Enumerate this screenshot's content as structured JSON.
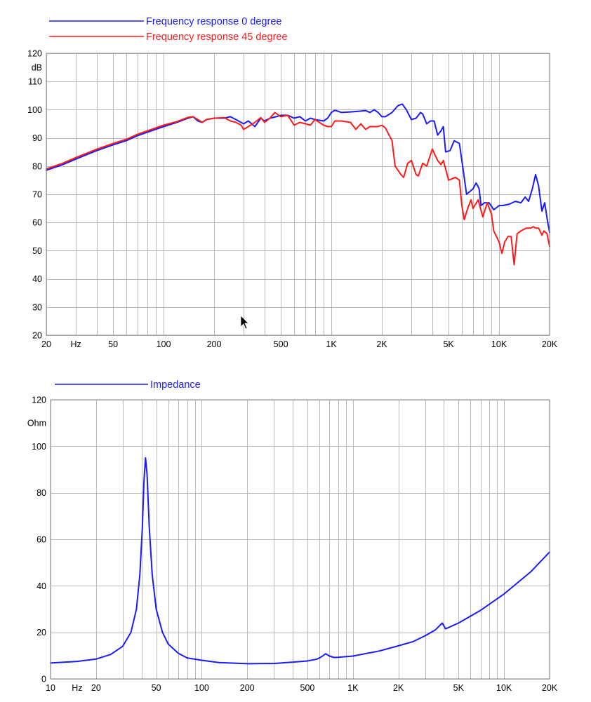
{
  "colors": {
    "blue": "#1a1aff",
    "red": "#ff1a1a",
    "grid": "#b9b9b9",
    "frame": "#8a8a8a"
  },
  "chart_data": [
    {
      "type": "line",
      "xscale": "log",
      "xlim": [
        20,
        20000
      ],
      "ylim": [
        20,
        120
      ],
      "grid": true,
      "legend_position": "top-left",
      "xtick_labels": [
        {
          "v": 20,
          "t": "20"
        },
        {
          "v": 30,
          "t": "Hz"
        },
        {
          "v": 50,
          "t": "50"
        },
        {
          "v": 100,
          "t": "100"
        },
        {
          "v": 200,
          "t": "200"
        },
        {
          "v": 500,
          "t": "500"
        },
        {
          "v": 1000,
          "t": "1K"
        },
        {
          "v": 2000,
          "t": "2K"
        },
        {
          "v": 5000,
          "t": "5K"
        },
        {
          "v": 10000,
          "t": "10K"
        },
        {
          "v": 20000,
          "t": "20K"
        }
      ],
      "ytick_labels": [
        {
          "v": 120,
          "t": "120"
        },
        {
          "v": 115,
          "t": "dB"
        },
        {
          "v": 110,
          "t": "110"
        },
        {
          "v": 100,
          "t": "100"
        },
        {
          "v": 90,
          "t": "90"
        },
        {
          "v": 80,
          "t": "80"
        },
        {
          "v": 70,
          "t": "70"
        },
        {
          "v": 60,
          "t": "60"
        },
        {
          "v": 50,
          "t": "50"
        },
        {
          "v": 40,
          "t": "40"
        },
        {
          "v": 30,
          "t": "30"
        },
        {
          "v": 20,
          "t": "20"
        }
      ],
      "series": [
        {
          "name": "Frequency response 0 degree",
          "color": "#1a1aff",
          "points": [
            [
              20,
              78.5
            ],
            [
              25,
              80.5
            ],
            [
              30,
              82.5
            ],
            [
              40,
              85.5
            ],
            [
              50,
              87.5
            ],
            [
              60,
              89
            ],
            [
              70,
              90.8
            ],
            [
              80,
              92
            ],
            [
              100,
              94
            ],
            [
              120,
              95.5
            ],
            [
              140,
              97
            ],
            [
              150,
              97.5
            ],
            [
              160,
              96
            ],
            [
              170,
              95.5
            ],
            [
              180,
              96.5
            ],
            [
              200,
              97
            ],
            [
              230,
              97
            ],
            [
              250,
              97.5
            ],
            [
              270,
              96.5
            ],
            [
              300,
              95
            ],
            [
              320,
              96
            ],
            [
              350,
              94
            ],
            [
              380,
              97
            ],
            [
              400,
              96
            ],
            [
              430,
              97
            ],
            [
              470,
              97.5
            ],
            [
              500,
              98
            ],
            [
              550,
              98
            ],
            [
              600,
              97
            ],
            [
              650,
              97.5
            ],
            [
              700,
              96
            ],
            [
              750,
              97
            ],
            [
              800,
              96.5
            ],
            [
              900,
              96
            ],
            [
              950,
              97
            ],
            [
              1000,
              99
            ],
            [
              1050,
              99.8
            ],
            [
              1150,
              99
            ],
            [
              1300,
              99.2
            ],
            [
              1500,
              99.5
            ],
            [
              1600,
              99.7
            ],
            [
              1700,
              99
            ],
            [
              1800,
              100
            ],
            [
              1900,
              99
            ],
            [
              2000,
              97.5
            ],
            [
              2100,
              97.5
            ],
            [
              2300,
              99
            ],
            [
              2500,
              101.5
            ],
            [
              2650,
              102
            ],
            [
              2800,
              100
            ],
            [
              3000,
              96.5
            ],
            [
              3200,
              97
            ],
            [
              3400,
              99
            ],
            [
              3500,
              98.5
            ],
            [
              3700,
              95
            ],
            [
              3900,
              96
            ],
            [
              4100,
              96
            ],
            [
              4300,
              91
            ],
            [
              4500,
              92.5
            ],
            [
              4650,
              94
            ],
            [
              4800,
              85
            ],
            [
              5100,
              85.5
            ],
            [
              5400,
              89
            ],
            [
              5800,
              88
            ],
            [
              6100,
              79
            ],
            [
              6400,
              70
            ],
            [
              6700,
              71
            ],
            [
              7000,
              72
            ],
            [
              7300,
              74
            ],
            [
              7600,
              72
            ],
            [
              7800,
              66
            ],
            [
              8200,
              67
            ],
            [
              8700,
              67
            ],
            [
              9300,
              64.5
            ],
            [
              10000,
              66
            ],
            [
              10500,
              66
            ],
            [
              11500,
              66.5
            ],
            [
              12500,
              67.5
            ],
            [
              13500,
              67
            ],
            [
              14300,
              69
            ],
            [
              15000,
              67.5
            ],
            [
              15800,
              72
            ],
            [
              16500,
              77
            ],
            [
              17200,
              73
            ],
            [
              18000,
              64
            ],
            [
              18700,
              67
            ],
            [
              19500,
              60
            ],
            [
              20000,
              56.5
            ]
          ]
        },
        {
          "name": "Frequency response 45 degree",
          "color": "#ff1a1a",
          "points": [
            [
              20,
              79
            ],
            [
              25,
              81
            ],
            [
              30,
              83
            ],
            [
              40,
              86
            ],
            [
              50,
              88
            ],
            [
              60,
              89.5
            ],
            [
              70,
              91.3
            ],
            [
              80,
              92.5
            ],
            [
              100,
              94.5
            ],
            [
              120,
              95.8
            ],
            [
              140,
              97.3
            ],
            [
              150,
              97.5
            ],
            [
              160,
              96.5
            ],
            [
              170,
              95.5
            ],
            [
              180,
              96.5
            ],
            [
              200,
              97
            ],
            [
              230,
              97.2
            ],
            [
              250,
              96
            ],
            [
              270,
              95.5
            ],
            [
              290,
              94.5
            ],
            [
              300,
              93
            ],
            [
              330,
              94.5
            ],
            [
              350,
              95.5
            ],
            [
              380,
              97.2
            ],
            [
              400,
              95.5
            ],
            [
              430,
              97
            ],
            [
              460,
              99
            ],
            [
              500,
              97.5
            ],
            [
              550,
              98
            ],
            [
              600,
              94.5
            ],
            [
              650,
              95.5
            ],
            [
              700,
              95
            ],
            [
              750,
              94.5
            ],
            [
              800,
              96.5
            ],
            [
              900,
              94.5
            ],
            [
              950,
              94
            ],
            [
              1000,
              94
            ],
            [
              1050,
              96
            ],
            [
              1150,
              96
            ],
            [
              1300,
              95.5
            ],
            [
              1400,
              93
            ],
            [
              1500,
              95
            ],
            [
              1600,
              93
            ],
            [
              1700,
              94
            ],
            [
              1800,
              94
            ],
            [
              1900,
              94
            ],
            [
              2000,
              94.5
            ],
            [
              2100,
              93.5
            ],
            [
              2300,
              89
            ],
            [
              2400,
              80
            ],
            [
              2600,
              77
            ],
            [
              2700,
              76
            ],
            [
              2850,
              81
            ],
            [
              3000,
              82
            ],
            [
              3200,
              77
            ],
            [
              3300,
              76.5
            ],
            [
              3500,
              81
            ],
            [
              3700,
              80
            ],
            [
              4000,
              86
            ],
            [
              4300,
              82
            ],
            [
              4500,
              80.5
            ],
            [
              4650,
              82
            ],
            [
              5000,
              75
            ],
            [
              5500,
              76
            ],
            [
              5800,
              75
            ],
            [
              6000,
              66
            ],
            [
              6200,
              61
            ],
            [
              6500,
              65
            ],
            [
              6800,
              68
            ],
            [
              7000,
              65
            ],
            [
              7500,
              68
            ],
            [
              8000,
              62
            ],
            [
              8500,
              67
            ],
            [
              9000,
              63
            ],
            [
              9300,
              57
            ],
            [
              10000,
              53
            ],
            [
              10400,
              49
            ],
            [
              10800,
              53
            ],
            [
              11300,
              55
            ],
            [
              11800,
              55
            ],
            [
              12300,
              45
            ],
            [
              12800,
              56
            ],
            [
              13500,
              57
            ],
            [
              14500,
              58
            ],
            [
              15500,
              58
            ],
            [
              16000,
              58.5
            ],
            [
              16500,
              58
            ],
            [
              17200,
              58
            ],
            [
              18000,
              55.5
            ],
            [
              18500,
              57
            ],
            [
              19300,
              56
            ],
            [
              20000,
              51.5
            ]
          ]
        }
      ]
    },
    {
      "type": "line",
      "xscale": "log",
      "xlim": [
        10,
        20000
      ],
      "ylim": [
        0,
        120
      ],
      "grid": true,
      "legend_position": "top-left",
      "xtick_labels": [
        {
          "v": 10,
          "t": "10"
        },
        {
          "v": 15,
          "t": "Hz"
        },
        {
          "v": 20,
          "t": "20"
        },
        {
          "v": 50,
          "t": "50"
        },
        {
          "v": 100,
          "t": "100"
        },
        {
          "v": 200,
          "t": "200"
        },
        {
          "v": 500,
          "t": "500"
        },
        {
          "v": 1000,
          "t": "1K"
        },
        {
          "v": 2000,
          "t": "2K"
        },
        {
          "v": 5000,
          "t": "5K"
        },
        {
          "v": 10000,
          "t": "10K"
        },
        {
          "v": 20000,
          "t": "20K"
        }
      ],
      "ytick_labels": [
        {
          "v": 120,
          "t": "120"
        },
        {
          "v": 110,
          "t": "Ohm"
        },
        {
          "v": 100,
          "t": "100"
        },
        {
          "v": 80,
          "t": "80"
        },
        {
          "v": 60,
          "t": "60"
        },
        {
          "v": 40,
          "t": "40"
        },
        {
          "v": 20,
          "t": "20"
        },
        {
          "v": 0,
          "t": "0"
        }
      ],
      "series": [
        {
          "name": "Impedance",
          "color": "#1a1aff",
          "points": [
            [
              10,
              6.8
            ],
            [
              15,
              7.5
            ],
            [
              20,
              8.5
            ],
            [
              25,
              10.5
            ],
            [
              30,
              14
            ],
            [
              34,
              20
            ],
            [
              37,
              30
            ],
            [
              39,
              45
            ],
            [
              40.5,
              65
            ],
            [
              41.5,
              85
            ],
            [
              42.5,
              95
            ],
            [
              43.5,
              88
            ],
            [
              45,
              65
            ],
            [
              47,
              45
            ],
            [
              50,
              30
            ],
            [
              55,
              20
            ],
            [
              60,
              15
            ],
            [
              70,
              11
            ],
            [
              80,
              9
            ],
            [
              100,
              8
            ],
            [
              130,
              7
            ],
            [
              200,
              6.5
            ],
            [
              300,
              6.6
            ],
            [
              400,
              7.2
            ],
            [
              500,
              7.7
            ],
            [
              580,
              8.5
            ],
            [
              620,
              9.5
            ],
            [
              660,
              10.8
            ],
            [
              700,
              9.8
            ],
            [
              750,
              9.2
            ],
            [
              800,
              9.3
            ],
            [
              1000,
              9.8
            ],
            [
              1500,
              12
            ],
            [
              2000,
              14.2
            ],
            [
              2500,
              16
            ],
            [
              3000,
              18.5
            ],
            [
              3500,
              21
            ],
            [
              3900,
              24
            ],
            [
              4100,
              21.5
            ],
            [
              5000,
              24
            ],
            [
              7000,
              29.5
            ],
            [
              10000,
              36.5
            ],
            [
              15000,
              46
            ],
            [
              20000,
              54.5
            ]
          ]
        }
      ]
    }
  ]
}
